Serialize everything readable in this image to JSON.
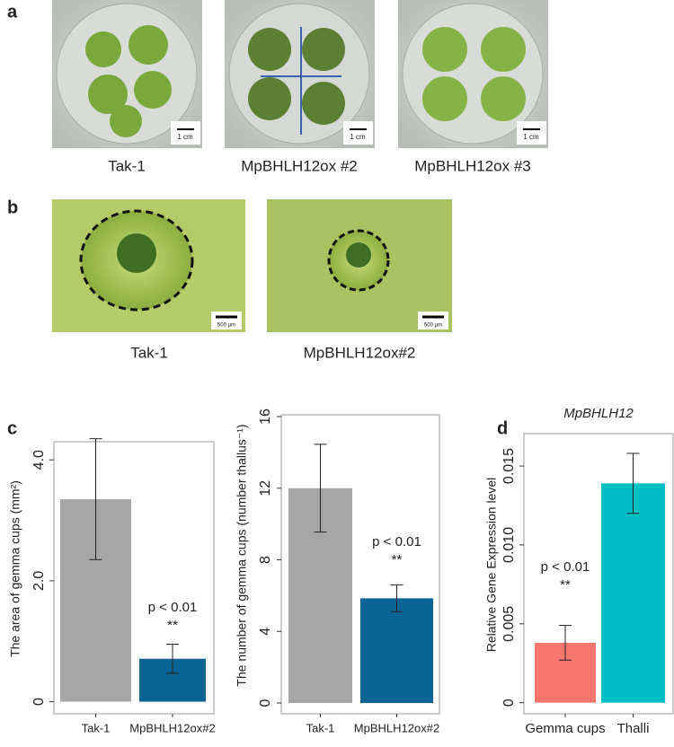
{
  "panel_labels": [
    "a",
    "b",
    "c",
    "d"
  ],
  "panel_a": {
    "captions": [
      "Tak-1",
      "MpBHLH12ox #2",
      "MpBHLH12ox #3"
    ],
    "scale_bar": "1 cm"
  },
  "panel_b": {
    "captions": [
      "Tak-1",
      "MpBHLH12ox#2"
    ],
    "scale_bar": "500 µm"
  },
  "chart_data": [
    {
      "type": "bar",
      "ylabel": "The area of gemma cups (mm²)",
      "categories": [
        "Tak-1",
        "MpBHLH12ox#2"
      ],
      "values": [
        3.35,
        0.71
      ],
      "errors": [
        1.0,
        0.24
      ],
      "colors": [
        "#a6a6a6",
        "#0a6596"
      ],
      "ylim": [
        -0.2,
        4.3
      ],
      "yticks": [
        0,
        {
          "value": 2,
          "label": "2.0"
        },
        {
          "value": 4,
          "label": "4.0"
        }
      ],
      "annotation": {
        "text": "p < 0.01",
        "stars": "**"
      }
    },
    {
      "type": "bar",
      "ylabel": "The number of gemma cups (number thallus⁻¹)",
      "categories": [
        "Tak-1",
        "MpBHLH12ox#2"
      ],
      "values": [
        12.0,
        5.85
      ],
      "errors": [
        2.45,
        0.75
      ],
      "colors": [
        "#a6a6a6",
        "#0a6596"
      ],
      "ylim": [
        -0.6,
        16.1
      ],
      "yticks": [
        0,
        4,
        8,
        12,
        16
      ],
      "annotation": {
        "text": "p < 0.01",
        "stars": "**"
      }
    },
    {
      "type": "bar",
      "title": "MpBHLH12",
      "ylabel": "Relative Gene Expression level",
      "categories": [
        "Gemma cups",
        "Thalli"
      ],
      "values": [
        0.0038,
        0.0139
      ],
      "errors": [
        0.0011,
        0.0019
      ],
      "colors": [
        "#f8766d",
        "#00bfc4"
      ],
      "ylim": [
        -0.0007,
        0.01705
      ],
      "yticks": [
        0,
        0.005,
        {
          "value": 0.01,
          "label": "0.010"
        },
        0.015
      ],
      "annotation": {
        "text": "p < 0.01",
        "stars": "**"
      }
    }
  ]
}
